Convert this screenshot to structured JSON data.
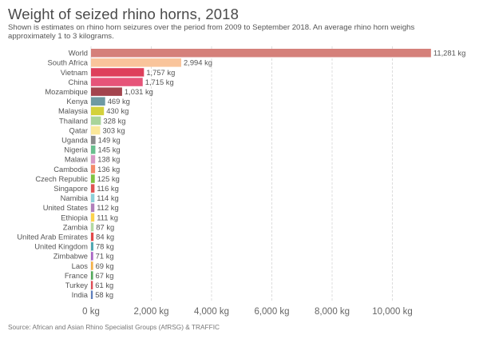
{
  "chart_data": {
    "type": "bar",
    "orientation": "horizontal",
    "title": "Weight of seized rhino horns, 2018",
    "subtitle": "Shown is estimates on rhino horn seizures over the period from 2009 to September 2018. An average rhino horn weighs approximately 1 to 3 kilograms.",
    "source": "Source: African and Asian Rhino Specialist Groups (AfRSG) & TRAFFIC",
    "xlabel": "",
    "ylabel": "",
    "unit": "kg",
    "xlim": [
      0,
      11281
    ],
    "grid": true,
    "x_ticks": [
      0,
      2000,
      4000,
      6000,
      8000,
      10000
    ],
    "x_tick_labels": [
      "0 kg",
      "2,000 kg",
      "4,000 kg",
      "6,000 kg",
      "8,000 kg",
      "10,000 kg"
    ],
    "categories": [
      "World",
      "South Africa",
      "Vietnam",
      "China",
      "Mozambique",
      "Kenya",
      "Malaysia",
      "Thailand",
      "Qatar",
      "Uganda",
      "Nigeria",
      "Malawi",
      "Cambodia",
      "Czech Republic",
      "Singapore",
      "Namibia",
      "United States",
      "Ethiopia",
      "Zambia",
      "United Arab Emirates",
      "United Kingdom",
      "Zimbabwe",
      "Laos",
      "France",
      "Turkey",
      "India"
    ],
    "values": [
      11281,
      2994,
      1757,
      1715,
      1031,
      469,
      430,
      328,
      303,
      149,
      145,
      138,
      136,
      125,
      116,
      114,
      112,
      111,
      87,
      84,
      78,
      71,
      69,
      67,
      61,
      58
    ],
    "value_labels": [
      "11,281 kg",
      "2,994 kg",
      "1,757 kg",
      "1,715 kg",
      "1,031 kg",
      "469 kg",
      "430 kg",
      "328 kg",
      "303 kg",
      "149 kg",
      "145 kg",
      "138 kg",
      "136 kg",
      "125 kg",
      "116 kg",
      "114 kg",
      "112 kg",
      "111 kg",
      "87 kg",
      "84 kg",
      "78 kg",
      "71 kg",
      "69 kg",
      "67 kg",
      "61 kg",
      "58 kg"
    ],
    "colors": [
      "#d5807a",
      "#f9c49b",
      "#de3f5b",
      "#e65479",
      "#a3444e",
      "#6e9aa2",
      "#d3d13b",
      "#a9d49a",
      "#fbe89a",
      "#8b8b8b",
      "#69bf8e",
      "#d797c4",
      "#f48a6a",
      "#80c341",
      "#e05353",
      "#8ccfd8",
      "#b07fba",
      "#fbd24c",
      "#b3daa0",
      "#e24848",
      "#4ea6b0",
      "#a865c4",
      "#f3b047",
      "#52a85a",
      "#de4b55",
      "#5f7fbd"
    ]
  }
}
